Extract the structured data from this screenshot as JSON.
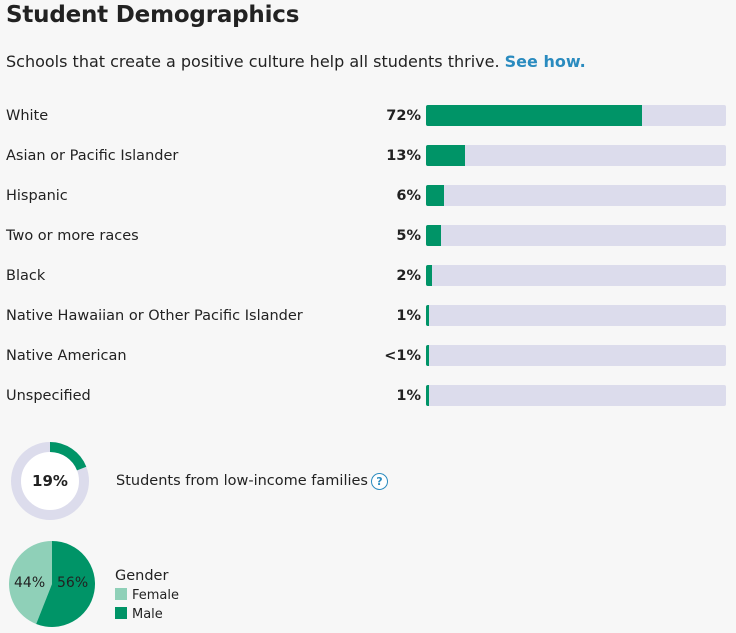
{
  "title": "Student Demographics",
  "subtitle": {
    "text": "Schools that create a positive culture help all students thrive.",
    "link": "See how."
  },
  "colors": {
    "bar_fill": "#009467",
    "bar_track": "#dcdcec",
    "female": "#8fd0b8",
    "male": "#009467",
    "link": "#2a8bbf"
  },
  "chart_data": [
    {
      "type": "bar",
      "categories": [
        "White",
        "Asian or Pacific Islander",
        "Hispanic",
        "Two or more races",
        "Black",
        "Native Hawaiian or Other Pacific Islander",
        "Native American",
        "Unspecified"
      ],
      "value_labels": [
        "72%",
        "13%",
        "6%",
        "5%",
        "2%",
        "1%",
        "<1%",
        "1%"
      ],
      "values": [
        72,
        13,
        6,
        5,
        2,
        1,
        0.3,
        1
      ],
      "ylim": [
        0,
        100
      ]
    },
    {
      "type": "pie",
      "label": "Students from low-income families",
      "value_label": "19%",
      "values": [
        19,
        81
      ]
    },
    {
      "type": "pie",
      "title": "Gender",
      "categories": [
        "Female",
        "Male"
      ],
      "value_labels": [
        "44%",
        "56%"
      ],
      "values": [
        44,
        56
      ]
    }
  ]
}
